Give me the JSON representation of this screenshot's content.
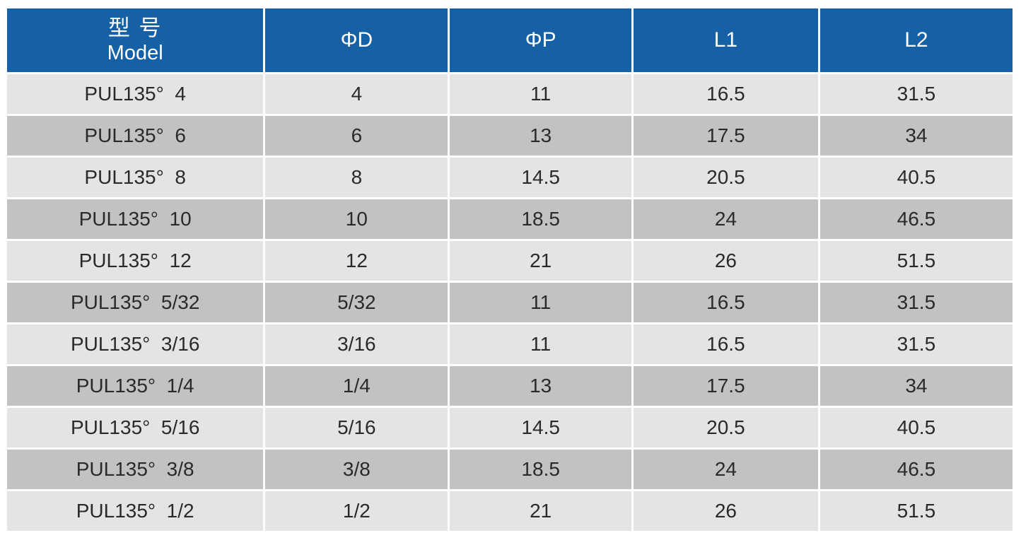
{
  "table": {
    "columns": [
      {
        "key": "model",
        "label_zh": "型 号",
        "label_en": "Model"
      },
      {
        "key": "d",
        "label": "ΦD"
      },
      {
        "key": "p",
        "label": "ΦP"
      },
      {
        "key": "l1",
        "label": "L1"
      },
      {
        "key": "l2",
        "label": "L2"
      }
    ],
    "rows": [
      [
        "PUL135°  4",
        "4",
        "11",
        "16.5",
        "31.5"
      ],
      [
        "PUL135°  6",
        "6",
        "13",
        "17.5",
        "34"
      ],
      [
        "PUL135°  8",
        "8",
        "14.5",
        "20.5",
        "40.5"
      ],
      [
        "PUL135°  10",
        "10",
        "18.5",
        "24",
        "46.5"
      ],
      [
        "PUL135°  12",
        "12",
        "21",
        "26",
        "51.5"
      ],
      [
        "PUL135°  5/32",
        "5/32",
        "11",
        "16.5",
        "31.5"
      ],
      [
        "PUL135°  3/16",
        "3/16",
        "11",
        "16.5",
        "31.5"
      ],
      [
        "PUL135°  1/4",
        "1/4",
        "13",
        "17.5",
        "34"
      ],
      [
        "PUL135°  5/16",
        "5/16",
        "14.5",
        "20.5",
        "40.5"
      ],
      [
        "PUL135°  3/8",
        "3/8",
        "18.5",
        "24",
        "46.5"
      ],
      [
        "PUL135°  1/2",
        "1/2",
        "21",
        "26",
        "51.5"
      ]
    ]
  },
  "colors": {
    "header_bg": "#1660a6",
    "row_light": "#e4e4e2",
    "row_dark": "#c2c2c2",
    "header_text": "#ffffff",
    "body_text": "#2a2a2a",
    "separator": "#ffffff",
    "page_bg": "#ffffff"
  }
}
